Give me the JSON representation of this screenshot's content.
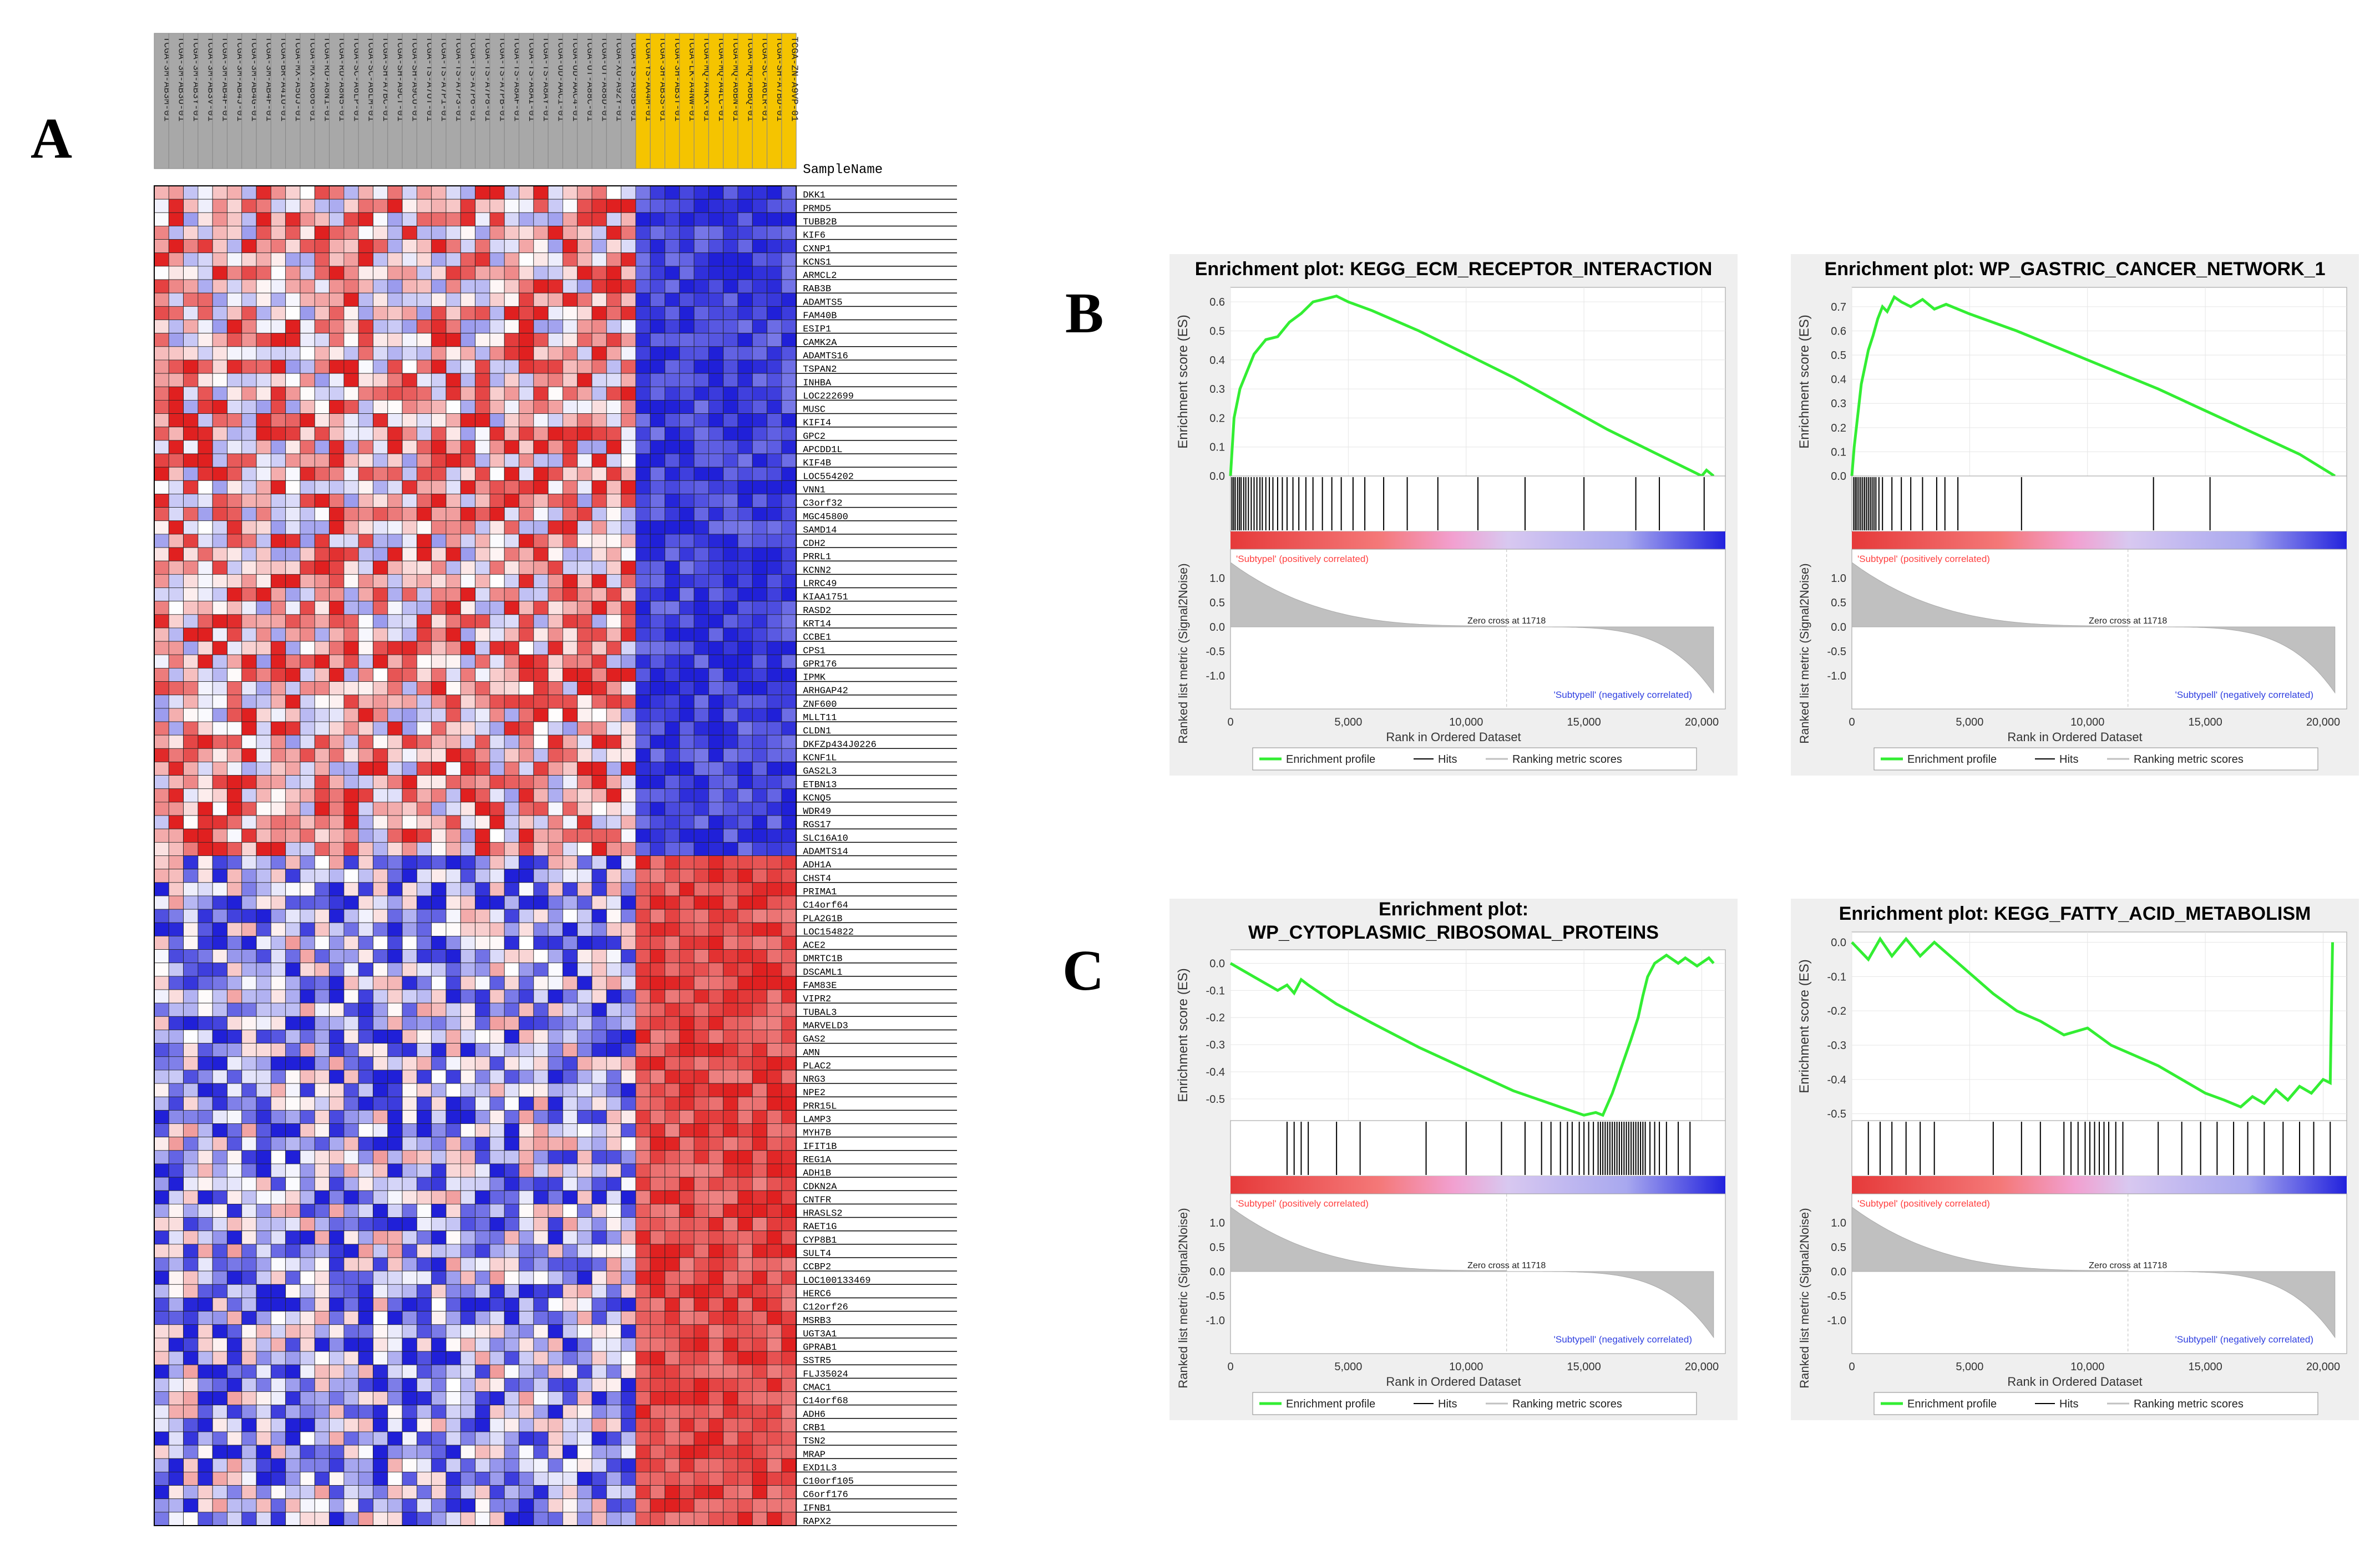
{
  "panels": {
    "a": "A",
    "b": "B",
    "c": "C"
  },
  "colors": {
    "red_strong": "#e02020",
    "blue_strong": "#2020d8",
    "white": "#ffffff",
    "cohort_grey": "#a8a8a8",
    "cohort_gold": "#f5c400",
    "es_line": "#33ee33",
    "hits": "#000000",
    "metric_fill": "#c0c0c0",
    "plot_bg": "#efefef",
    "positive_label": "#ff4040",
    "negative_label": "#3040e0"
  },
  "chart_data": [
    {
      "type": "heatmap",
      "panel": "A",
      "sample_header": "SampleName",
      "samples": [
        {
          "name": "TCGA-3M-AB3M-01",
          "group": "grey"
        },
        {
          "name": "TCGA-3M-AB3U-01",
          "group": "grey"
        },
        {
          "name": "TCGA-3M-AB3Y-01",
          "group": "grey"
        },
        {
          "name": "TCGA-3M-AB3V-01",
          "group": "grey"
        },
        {
          "name": "TCGA-3M-AB4F-01",
          "group": "grey"
        },
        {
          "name": "TCGA-3M-AB4J-01",
          "group": "grey"
        },
        {
          "name": "TCGA-3M-AB4G-01",
          "group": "grey"
        },
        {
          "name": "TCGA-3M-AB4F-01",
          "group": "grey"
        },
        {
          "name": "TCGA-BR-A4IU-01",
          "group": "grey"
        },
        {
          "name": "TCGA-MX-A5UJ-01",
          "group": "grey"
        },
        {
          "name": "TCGA-MX-A666-01",
          "group": "grey"
        },
        {
          "name": "TCGA-RD-A8N1-01",
          "group": "grey"
        },
        {
          "name": "TCGA-RD-A8N5-01",
          "group": "grey"
        },
        {
          "name": "TCGA-SC-A6LP-01",
          "group": "grey"
        },
        {
          "name": "TCGA-SC-A6LM-01",
          "group": "grey"
        },
        {
          "name": "TCGA-SH-A7BC-01",
          "group": "grey"
        },
        {
          "name": "TCGA-SH-A9CT-01",
          "group": "grey"
        },
        {
          "name": "TCGA-SH-A9CU-01",
          "group": "grey"
        },
        {
          "name": "TCGA-TS-A7OT-01",
          "group": "grey"
        },
        {
          "name": "TCGA-TS-A7P1-01",
          "group": "grey"
        },
        {
          "name": "TCGA-TS-A7P3-01",
          "group": "grey"
        },
        {
          "name": "TCGA-TS-A7P6-01",
          "group": "grey"
        },
        {
          "name": "TCGA-TS-A7P8-01",
          "group": "grey"
        },
        {
          "name": "TCGA-TS-A7PB-01",
          "group": "grey"
        },
        {
          "name": "TCGA-TS-A8AF-01",
          "group": "grey"
        },
        {
          "name": "TCGA-TS-A8AI-01",
          "group": "grey"
        },
        {
          "name": "TCGA-TS-A8AY-01",
          "group": "grey"
        },
        {
          "name": "TCGA-UD-AAC1-01",
          "group": "grey"
        },
        {
          "name": "TCGA-UD-AAC4-01",
          "group": "grey"
        },
        {
          "name": "TCGA-UT-A88C-01",
          "group": "grey"
        },
        {
          "name": "TCGA-UT-A88D-01",
          "group": "grey"
        },
        {
          "name": "TCGA-XU-A92Y-01",
          "group": "grey"
        },
        {
          "name": "TCGA-YS-A95B-01",
          "group": "grey"
        },
        {
          "name": "TCGA-YS-AA4M-01",
          "group": "gold"
        },
        {
          "name": "TCGA-3H-AB3S-01",
          "group": "gold"
        },
        {
          "name": "TCGA-3H-AB3T-01",
          "group": "gold"
        },
        {
          "name": "TCGA-LK-A4NW-01",
          "group": "gold"
        },
        {
          "name": "TCGA-MQ-A4KX-01",
          "group": "gold"
        },
        {
          "name": "TCGA-MQ-A4LC-01",
          "group": "gold"
        },
        {
          "name": "TCGA-MQ-A6BN-01",
          "group": "gold"
        },
        {
          "name": "TCGA-MQ-A6BQ-01",
          "group": "gold"
        },
        {
          "name": "TCGA-SC-A6LR-01",
          "group": "gold"
        },
        {
          "name": "TCGA-SH-A7BD-01",
          "group": "gold"
        },
        {
          "name": "TCGA-ZN-A9VP-01",
          "group": "gold"
        }
      ],
      "genes": [
        "DKK1",
        "PRMD5",
        "TUBB2B",
        "KIF6",
        "CXNP1",
        "KCNS1",
        "ARMCL2",
        "RAB3B",
        "ADAMTS5",
        "FAM40B",
        "ESIP1",
        "CAMK2A",
        "ADAMTS16",
        "TSPAN2",
        "INHBA",
        "LOC222699",
        "MUSC",
        "KIFI4",
        "GPC2",
        "APCDD1L",
        "KIF4B",
        "LOC554202",
        "VNN1",
        "C3orf32",
        "MGC45800",
        "SAMD14",
        "CDH2",
        "PRRL1",
        "KCNN2",
        "LRRC49",
        "KIAA1751",
        "RASD2",
        "KRT14",
        "CCBE1",
        "CPS1",
        "GPR176",
        "IPMK",
        "ARHGAP42",
        "ZNF600",
        "MLLT11",
        "CLDN1",
        "DKFZp434J0226",
        "KCNF1L",
        "GAS2L3",
        "ETBN13",
        "KCNQ5",
        "WDR49",
        "RGS17",
        "SLC16A10",
        "ADAMTS14",
        "ADH1A",
        "CHST4",
        "PRIMA1",
        "C14orf64",
        "PLA2G1B",
        "LOC154822",
        "ACE2",
        "DMRTC1B",
        "DSCAML1",
        "FAM83E",
        "VIPR2",
        "TUBAL3",
        "MARVELD3",
        "GAS2",
        "AMN",
        "PLAC2",
        "NRG3",
        "NPE2",
        "PRR15L",
        "LAMP3",
        "MYH7B",
        "IFIT1B",
        "REG1A",
        "ADH1B",
        "CDKN2A",
        "CNTFR",
        "HRASLS2",
        "RAET1G",
        "CYP8B1",
        "SULT4",
        "CCBP2",
        "LOC100133469",
        "HERC6",
        "C12orf26",
        "MSRB3",
        "UGT3A1",
        "GPRAB1",
        "SSTR5",
        "FLJ35024",
        "CMAC1",
        "C14orf68",
        "ADH6",
        "CRB1",
        "TSN2",
        "MRAP",
        "EXD1L3",
        "C10orf105",
        "C6orf176",
        "IFNB1",
        "RAPX2"
      ],
      "value_range": [
        -1,
        1
      ],
      "color_scale": "blue-white-red"
    },
    {
      "type": "line",
      "panel": "B",
      "title": "Enrichment plot: KEGG_ECM_RECEPTOR_INTERACTION",
      "title2": "",
      "ylabel": "Enrichment score (ES)",
      "ylim": [
        0,
        0.65
      ],
      "yticks": [
        0.0,
        0.1,
        0.2,
        0.3,
        0.4,
        0.5,
        0.6
      ],
      "es_x": [
        0,
        150,
        400,
        700,
        1000,
        1500,
        2000,
        2500,
        3000,
        3500,
        4000,
        4500,
        5000,
        6000,
        8000,
        10000,
        12000,
        14000,
        16000,
        18000,
        19500,
        20000,
        20200,
        20500
      ],
      "es_y": [
        0,
        0.2,
        0.3,
        0.36,
        0.42,
        0.47,
        0.48,
        0.53,
        0.56,
        0.6,
        0.61,
        0.62,
        0.6,
        0.57,
        0.5,
        0.42,
        0.34,
        0.25,
        0.16,
        0.08,
        0.02,
        0.0,
        0.02,
        0.0
      ],
      "hits": [
        60,
        130,
        200,
        300,
        380,
        450,
        560,
        650,
        760,
        880,
        1000,
        1120,
        1250,
        1350,
        1500,
        1650,
        1800,
        2000,
        2200,
        2400,
        2650,
        2900,
        3200,
        3500,
        3900,
        4300,
        4700,
        5200,
        5700,
        6500,
        7500,
        8800,
        10500,
        12500,
        15000,
        17200,
        18200,
        20100
      ],
      "pos_label": "'Subtypel' (positively correlated)",
      "neg_label": "'Subtypell' (negatively correlated)",
      "zero_cross": "Zero cross at 11718",
      "metric_ylabel": "Ranked list metric (Signal2Noise)",
      "metric_yticks": [
        "1.0",
        "0.5",
        "0.0",
        "-0.5",
        "-1.0"
      ],
      "xlabel": "Rank in Ordered Dataset",
      "xticks": [
        "0",
        "5,000",
        "10,000",
        "15,000",
        "20,000"
      ],
      "xlim": [
        0,
        21000
      ],
      "legend": [
        "Enrichment profile",
        "Hits",
        "Ranking metric scores"
      ]
    },
    {
      "type": "line",
      "panel": "B",
      "title": "Enrichment plot: WP_GASTRIC_CANCER_NETWORK_1",
      "title2": "",
      "ylabel": "Enrichment score (ES)",
      "ylim": [
        0,
        0.78
      ],
      "yticks": [
        0.0,
        0.1,
        0.2,
        0.3,
        0.4,
        0.5,
        0.6,
        0.7
      ],
      "es_x": [
        0,
        100,
        250,
        400,
        550,
        700,
        900,
        1100,
        1300,
        1500,
        1800,
        2100,
        2500,
        3000,
        3500,
        4000,
        5000,
        7000,
        9000,
        11000,
        13000,
        15000,
        17000,
        19000,
        20500
      ],
      "es_y": [
        0,
        0.12,
        0.25,
        0.38,
        0.45,
        0.52,
        0.58,
        0.65,
        0.7,
        0.68,
        0.74,
        0.72,
        0.7,
        0.73,
        0.69,
        0.71,
        0.67,
        0.6,
        0.52,
        0.44,
        0.36,
        0.27,
        0.18,
        0.09,
        0.0
      ],
      "hits": [
        80,
        150,
        220,
        300,
        380,
        460,
        540,
        620,
        700,
        780,
        860,
        940,
        1020,
        1150,
        1300,
        1700,
        2100,
        2500,
        3000,
        3600,
        3950,
        4500,
        7200,
        12800,
        15200
      ],
      "pos_label": "'Subtypel' (positively correlated)",
      "neg_label": "'Subtypell' (negatively correlated)",
      "zero_cross": "Zero cross at 11718",
      "metric_ylabel": "Ranked list metric (Signal2Noise)",
      "metric_yticks": [
        "1.0",
        "0.5",
        "0.0",
        "-0.5",
        "-1.0"
      ],
      "xlabel": "Rank in Ordered Dataset",
      "xticks": [
        "0",
        "5,000",
        "10,000",
        "15,000",
        "20,000"
      ],
      "xlim": [
        0,
        21000
      ],
      "legend": [
        "Enrichment profile",
        "Hits",
        "Ranking metric scores"
      ]
    },
    {
      "type": "line",
      "panel": "C",
      "title": "Enrichment plot:",
      "title2": "WP_CYTOPLASMIC_RIBOSOMAL_PROTEINS",
      "ylabel": "Enrichment score (ES)",
      "ylim": [
        -0.58,
        0.05
      ],
      "yticks": [
        0.0,
        -0.1,
        -0.2,
        -0.3,
        -0.4,
        -0.5
      ],
      "es_x": [
        0,
        1000,
        2000,
        2400,
        2700,
        3000,
        3300,
        4500,
        6000,
        8000,
        10000,
        12000,
        14000,
        15000,
        15500,
        15800,
        16200,
        16600,
        17000,
        17300,
        17500,
        17700,
        18000,
        18500,
        19000,
        19300,
        19800,
        20300,
        20500
      ],
      "es_y": [
        0,
        -0.05,
        -0.1,
        -0.08,
        -0.11,
        -0.06,
        -0.08,
        -0.15,
        -0.22,
        -0.31,
        -0.39,
        -0.47,
        -0.53,
        -0.56,
        -0.55,
        -0.56,
        -0.48,
        -0.38,
        -0.28,
        -0.2,
        -0.12,
        -0.05,
        0.0,
        0.03,
        0.0,
        0.02,
        -0.01,
        0.02,
        0.0
      ],
      "hits": [
        2400,
        2700,
        3000,
        3300,
        4500,
        5500,
        8300,
        10000,
        11500,
        12500,
        13200,
        13600,
        14000,
        14300,
        14500,
        14800,
        15000,
        15200,
        15400,
        15600,
        15700,
        15800,
        15900,
        16000,
        16100,
        16200,
        16300,
        16400,
        16500,
        16600,
        16700,
        16800,
        16900,
        17000,
        17100,
        17200,
        17300,
        17400,
        17500,
        17600,
        17800,
        18000,
        18200,
        18500,
        19000,
        19500
      ],
      "pos_label": "'Subtypel' (positively correlated)",
      "neg_label": "'Subtypell' (negatively correlated)",
      "zero_cross": "Zero cross at 11718",
      "metric_ylabel": "Ranked list metric (Signal2Noise)",
      "metric_yticks": [
        "1.0",
        "0.5",
        "0.0",
        "-0.5",
        "-1.0"
      ],
      "xlabel": "Rank in Ordered Dataset",
      "xticks": [
        "0",
        "5,000",
        "10,000",
        "15,000",
        "20,000"
      ],
      "xlim": [
        0,
        21000
      ],
      "legend": [
        "Enrichment profile",
        "Hits",
        "Ranking metric scores"
      ]
    },
    {
      "type": "line",
      "panel": "C",
      "title": "Enrichment plot: KEGG_FATTY_ACID_METABOLISM",
      "title2": "",
      "ylabel": "Enrichment score (ES)",
      "ylim": [
        -0.52,
        0.03
      ],
      "yticks": [
        0.0,
        -0.1,
        -0.2,
        -0.3,
        -0.4,
        -0.5
      ],
      "es_x": [
        0,
        700,
        1200,
        1700,
        2300,
        2900,
        3500,
        4000,
        5000,
        6000,
        7000,
        8000,
        9000,
        10000,
        11000,
        12000,
        13000,
        14000,
        15000,
        15800,
        16500,
        17000,
        17500,
        18000,
        18500,
        19000,
        19500,
        20000,
        20300,
        20400
      ],
      "es_y": [
        0,
        -0.05,
        0.01,
        -0.04,
        0.01,
        -0.04,
        0.0,
        -0.03,
        -0.09,
        -0.15,
        -0.2,
        -0.23,
        -0.27,
        -0.25,
        -0.3,
        -0.33,
        -0.36,
        -0.4,
        -0.44,
        -0.46,
        -0.48,
        -0.45,
        -0.47,
        -0.43,
        -0.46,
        -0.42,
        -0.44,
        -0.4,
        -0.41,
        0.0
      ],
      "hits": [
        700,
        1200,
        1700,
        2300,
        2900,
        3500,
        6000,
        7200,
        8000,
        9000,
        9300,
        9600,
        9900,
        10100,
        10300,
        10500,
        10700,
        10900,
        11200,
        11500,
        13000,
        14000,
        14800,
        15500,
        16200,
        16800,
        17500,
        18300,
        19000,
        19600,
        20300
      ],
      "pos_label": "'Subtypel' (positively correlated)",
      "neg_label": "'Subtypell' (negatively correlated)",
      "zero_cross": "Zero cross at 11718",
      "metric_ylabel": "Ranked list metric (Signal2Noise)",
      "metric_yticks": [
        "1.0",
        "0.5",
        "0.0",
        "-0.5",
        "-1.0"
      ],
      "xlabel": "Rank in Ordered Dataset",
      "xticks": [
        "0",
        "5,000",
        "10,000",
        "15,000",
        "20,000"
      ],
      "xlim": [
        0,
        21000
      ],
      "legend": [
        "Enrichment profile",
        "Hits",
        "Ranking metric scores"
      ]
    }
  ]
}
